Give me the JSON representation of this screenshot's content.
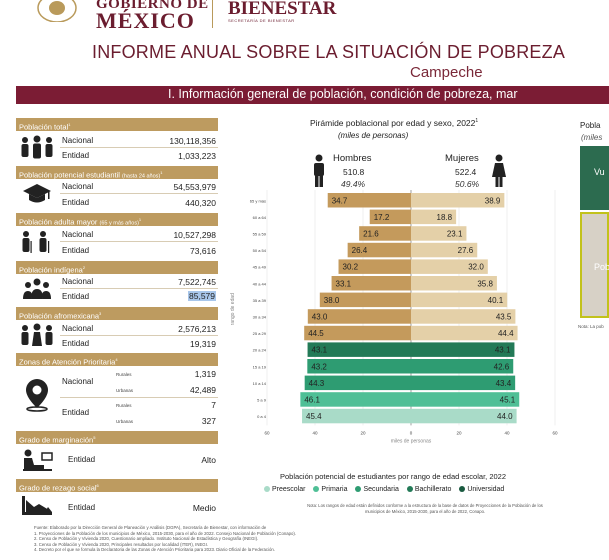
{
  "header": {
    "gob_line1": "GOBIERNO DE",
    "gob_line2": "MÉXICO",
    "bienestar": "BIENESTAR",
    "bienestar_sub": "SECRETARÍA DE BIENESTAR",
    "title": "INFORME ANUAL SOBRE LA SITUACIÓN DE POBREZA",
    "state": "Campeche",
    "section_bar": "I. Información general de población, condición de pobreza, mar"
  },
  "left": {
    "total": {
      "title": "Población total",
      "sup": "1",
      "nacional_label": "Nacional",
      "nacional": "130,118,356",
      "entidad_label": "Entidad",
      "entidad": "1,033,223"
    },
    "estudiantil": {
      "title": "Población potencial estudiantil",
      "note": "(hasta 24 años)",
      "sup": "1",
      "nacional_label": "Nacional",
      "nacional": "54,553,979",
      "entidad_label": "Entidad",
      "entidad": "440,320"
    },
    "adulta": {
      "title": "Población adulta mayor",
      "note": "(65 y más años)",
      "sup": "1",
      "nacional_label": "Nacional",
      "nacional": "10,527,298",
      "entidad_label": "Entidad",
      "entidad": "73,616"
    },
    "indigena": {
      "title": "Población indígena",
      "sup": "2",
      "nacional_label": "Nacional",
      "nacional": "7,522,745",
      "entidad_label": "Entidad",
      "entidad": "85,579"
    },
    "afro": {
      "title": "Población afromexicana",
      "sup": "3",
      "nacional_label": "Nacional",
      "nacional": "2,576,213",
      "entidad_label": "Entidad",
      "entidad": "19,319"
    },
    "zap": {
      "title": "Zonas de Atención Prioritaria",
      "sup": "4",
      "nacional_label": "Nacional",
      "entidad_label": "Entidad",
      "rurales_label": "Rurales",
      "urbanas_label": "Urbanas",
      "nac_rurales": "1,319",
      "nac_urbanas": "42,489",
      "ent_rurales": "7",
      "ent_urbanas": "327"
    },
    "marginacion": {
      "title": "Grado de marginación",
      "sup": "5",
      "entidad_label": "Entidad",
      "value": "Alto"
    },
    "rezago": {
      "title": "Grado de rezago social",
      "sup": "6",
      "entidad_label": "Entidad",
      "value": "Medio"
    }
  },
  "chart_data": {
    "type": "bar",
    "title": "Pirámide poblacional por edad y sexo, 2022",
    "title_sup": "1",
    "subtitle": "(miles de personas)",
    "xlabel": "miles de personas",
    "ylabel": "rango de edad",
    "xlim": [
      -60,
      60
    ],
    "xticks": [
      "60",
      "40",
      "20",
      "0",
      "20",
      "40",
      "60"
    ],
    "categories": [
      "65 y más",
      "60 a 64",
      "55 a 59",
      "50 a 54",
      "45 a 49",
      "40 a 44",
      "35 a 39",
      "30 a 34",
      "25 a 29",
      "20 a 24",
      "15 a 19",
      "10 a 14",
      "5 a 9",
      "0 a 4"
    ],
    "series": [
      {
        "name": "Hombres",
        "total": "510.8",
        "pct": "49.4%",
        "values": [
          34.7,
          17.2,
          21.6,
          26.4,
          30.2,
          33.1,
          38.0,
          43.0,
          44.5,
          43.1,
          43.2,
          44.3,
          46.1,
          45.4
        ]
      },
      {
        "name": "Mujeres",
        "total": "522.4",
        "pct": "50.6%",
        "values": [
          38.9,
          18.8,
          23.1,
          27.6,
          32.0,
          35.8,
          40.1,
          43.5,
          44.4,
          43.1,
          42.6,
          43.4,
          45.1,
          44.0
        ]
      }
    ],
    "bar_groups": [
      "",
      "",
      "",
      "",
      "",
      "",
      "",
      "",
      "",
      "Bachillerato",
      "Secundaria",
      "Secundaria",
      "Primaria",
      "Preescolar"
    ],
    "legend_title": "Población potencial de estudiantes por rango de edad escolar, 2022",
    "legend": [
      {
        "name": "Preescolar",
        "color": "#a9dbc8"
      },
      {
        "name": "Primaria",
        "color": "#4fbf96"
      },
      {
        "name": "Secundaria",
        "color": "#2e9c72"
      },
      {
        "name": "Bachillerato",
        "color": "#237a57"
      },
      {
        "name": "Universidad",
        "color": "#1a5a40"
      }
    ],
    "colors": {
      "hombres": "#c49a5c",
      "mujeres": "#e4d0a8"
    }
  },
  "note": "Nota: Los rangos de edad están definidos conforme a la estructura de la base de datos de Proyecciones de la Población de los municipios de México, 2015-2030, para el año de 2022, Conapo.",
  "fuente": [
    "Fuente: Elaborado por la Dirección General de Planeación y Análisis (DGPA), Secretaría de Bienestar, con información de",
    "1. Proyecciones de la Población de los municipios de México, 2015-2030, para el año de 2022. Consejo Nacional de Población (Conapo).",
    "2. Censo de Población y Vivienda 2020, Cuestionario ampliado. Instituto Nacional de Estadística y Geografía (INEGI).",
    "3. Censo de Población y Vivienda 2020, Principales resultados por localidad (ITER), INEGI.",
    "4. Decreto por el que se formula la Declaratoria de las Zonas de Atención Prioritaria para 2023. Diario Oficial de la Federación."
  ],
  "right": {
    "title": "Pobla",
    "sub": "(miles",
    "box1": "Vu",
    "box2": "Pob",
    "note": "Nota: La pob"
  }
}
